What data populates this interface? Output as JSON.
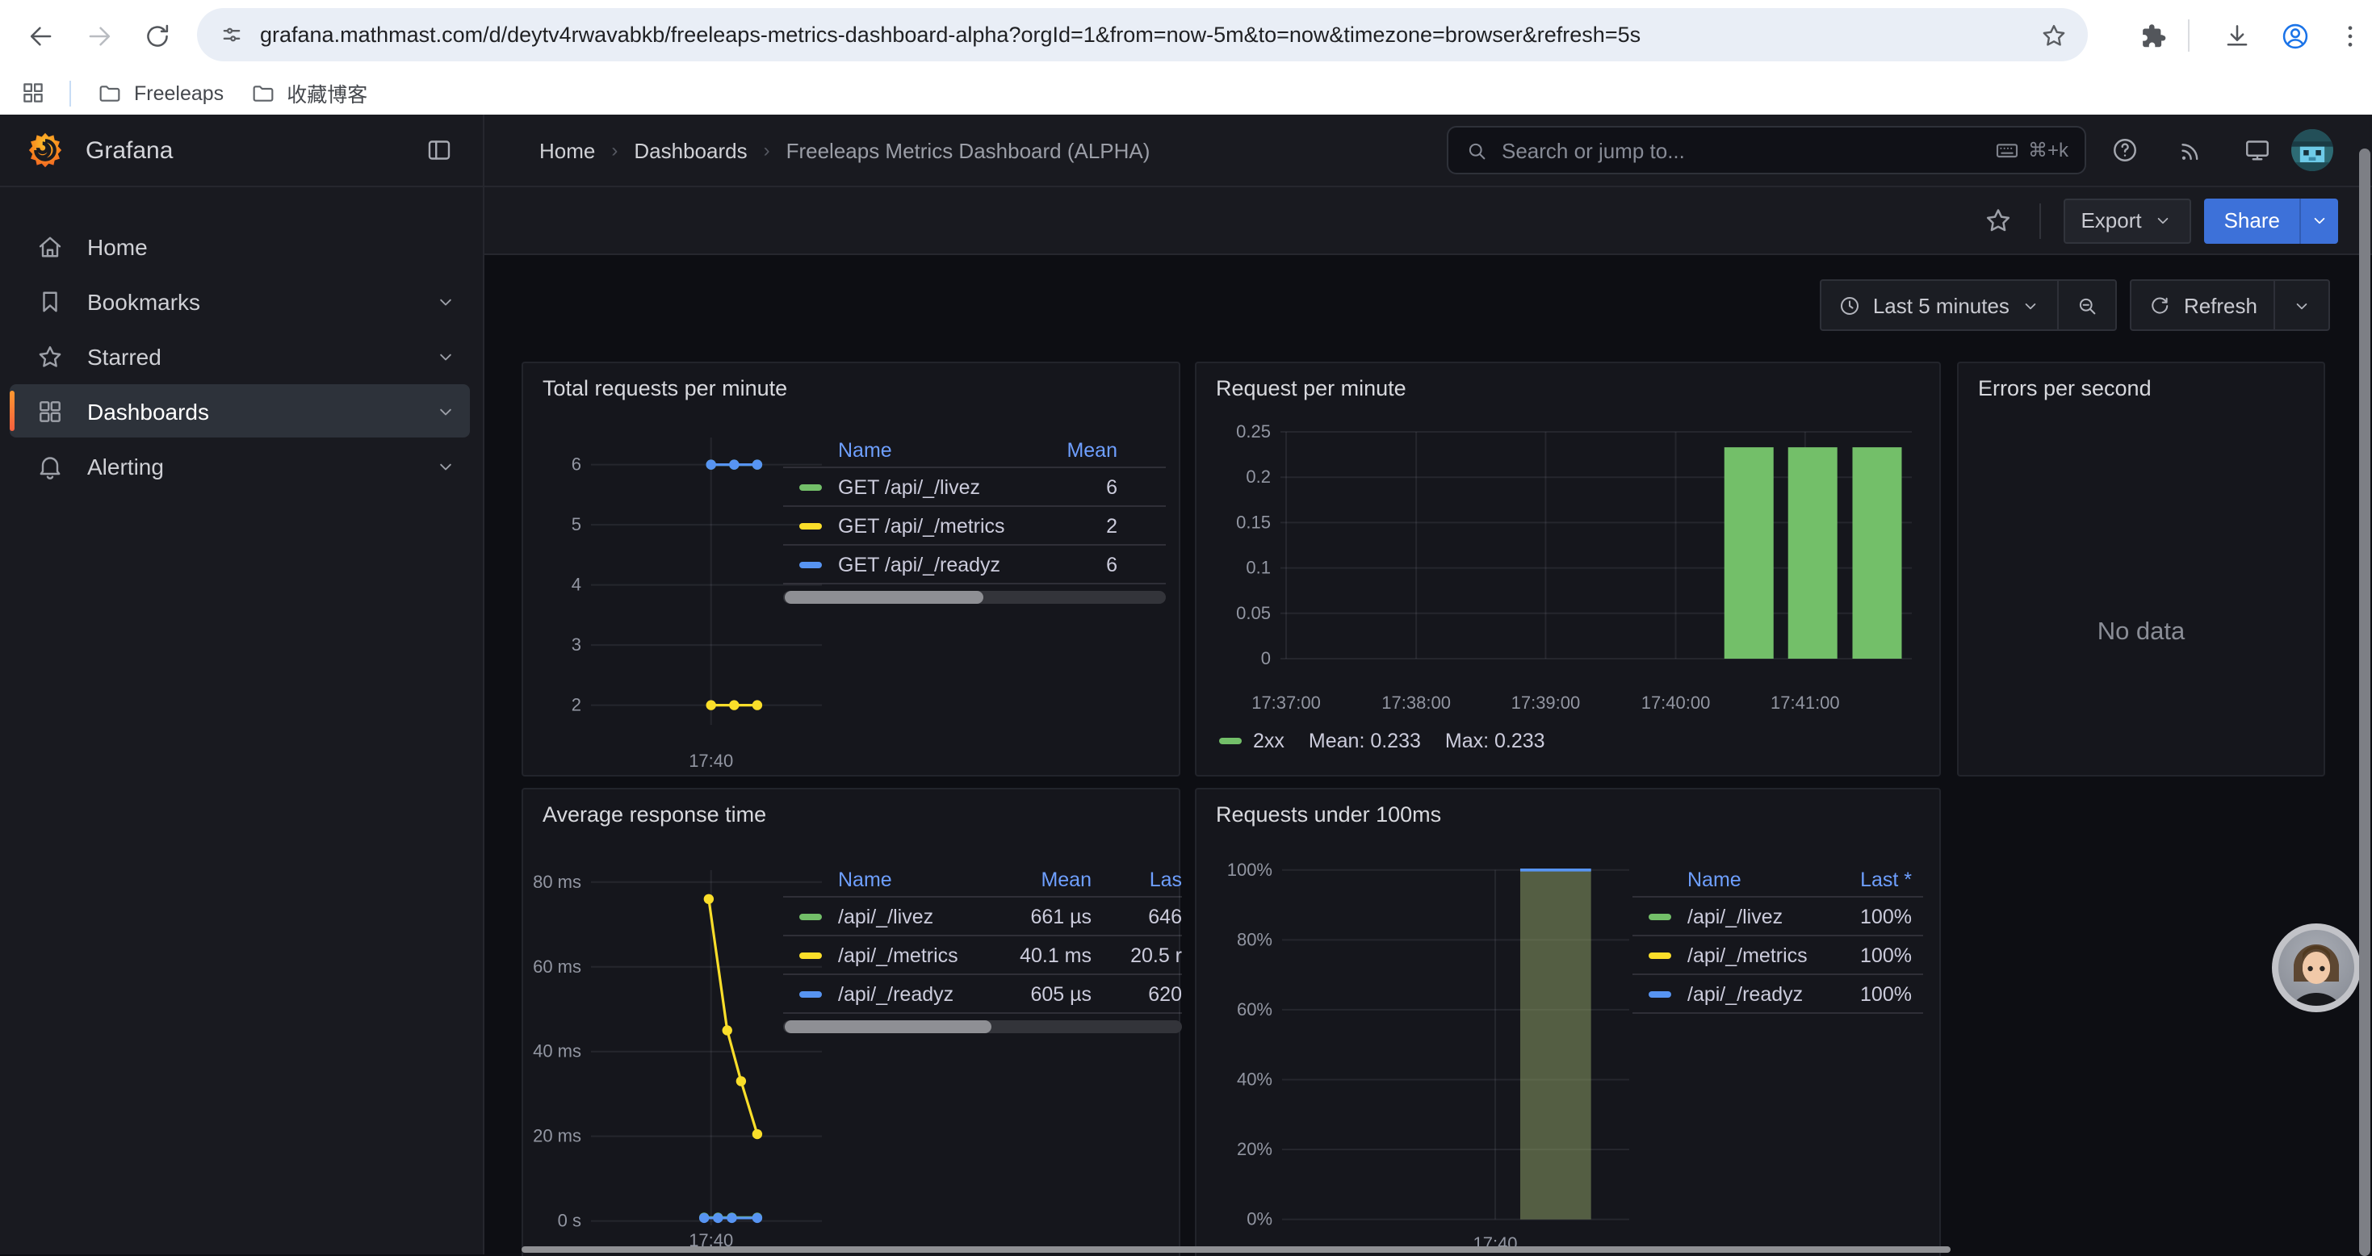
{
  "browser": {
    "url": "grafana.mathmast.com/d/deytv4rwavabkb/freeleaps-metrics-dashboard-alpha?orgId=1&from=now-5m&to=now&timezone=browser&refresh=5s",
    "bookmarks": [
      {
        "label": "Freeleaps"
      },
      {
        "label": "收藏博客"
      }
    ]
  },
  "nav": {
    "brand": "Grafana",
    "breadcrumb": [
      "Home",
      "Dashboards",
      "Freeleaps Metrics Dashboard (ALPHA)"
    ],
    "search_placeholder": "Search or jump to...",
    "search_shortcut": "⌘+k",
    "export_label": "Export",
    "share_label": "Share",
    "time_range_label": "Last 5 minutes",
    "refresh_label": "Refresh"
  },
  "sidebar": {
    "items": [
      {
        "label": "Home",
        "icon": "home",
        "active": false,
        "chevron": false
      },
      {
        "label": "Bookmarks",
        "icon": "bookmark",
        "active": false,
        "chevron": true
      },
      {
        "label": "Starred",
        "icon": "star",
        "active": false,
        "chevron": true
      },
      {
        "label": "Dashboards",
        "icon": "grid",
        "active": true,
        "chevron": true
      },
      {
        "label": "Alerting",
        "icon": "bell",
        "active": false,
        "chevron": true
      }
    ]
  },
  "colors": {
    "green": "#73BF69",
    "yellow": "#FADE2A",
    "blue": "#5794F2",
    "link_blue": "#6E9FFF",
    "accent_orange": "#FF9830",
    "share_blue": "#3D71D9",
    "area_fill": "rgba(148,165,105,0.5)"
  },
  "icon_names": [
    "back",
    "forward",
    "reload",
    "site-info",
    "bookmark-star",
    "extensions",
    "download",
    "profile",
    "menu-kebab",
    "apps-grid",
    "folder",
    "grafana-logo",
    "collapse-sidebar",
    "search",
    "keyboard",
    "help",
    "news",
    "monitor",
    "user-avatar",
    "home",
    "bookmark",
    "star",
    "grid",
    "bell",
    "chevron-down",
    "clock",
    "zoom-out",
    "refresh-sync",
    "assistant-avatar"
  ],
  "chart_data": [
    {
      "id": "total-requests",
      "type": "line",
      "title": "Total requests per minute",
      "y_ticks": [
        6,
        5,
        4,
        3,
        2
      ],
      "x_ticks": [
        {
          "label": "17:40",
          "x": 0.52
        }
      ],
      "ylim": [
        2,
        6
      ],
      "series": [
        {
          "name": "GET /api/_/livez",
          "color": "#73BF69",
          "points": [
            {
              "x": 0.52,
              "y": 6
            },
            {
              "x": 0.62,
              "y": 6
            },
            {
              "x": 0.72,
              "y": 6
            }
          ]
        },
        {
          "name": "GET /api/_/metrics",
          "color": "#FADE2A",
          "points": [
            {
              "x": 0.52,
              "y": 2
            },
            {
              "x": 0.62,
              "y": 2
            },
            {
              "x": 0.72,
              "y": 2
            }
          ]
        },
        {
          "name": "GET /api/_/readyz",
          "color": "#5794F2",
          "points": [
            {
              "x": 0.52,
              "y": 6
            },
            {
              "x": 0.62,
              "y": 6
            },
            {
              "x": 0.72,
              "y": 6
            }
          ]
        }
      ],
      "table": {
        "headers": [
          "Name",
          "Mean"
        ],
        "rows": [
          {
            "color": "#73BF69",
            "name": "GET /api/_/livez",
            "values": [
              "6"
            ]
          },
          {
            "color": "#FADE2A",
            "name": "GET /api/_/metrics",
            "values": [
              "2"
            ]
          },
          {
            "color": "#5794F2",
            "name": "GET /api/_/readyz",
            "values": [
              "6"
            ]
          }
        ],
        "scrollbar": true
      }
    },
    {
      "id": "request-per-minute",
      "type": "bar",
      "title": "Request per minute",
      "y_ticks": [
        0.25,
        0.2,
        0.15,
        0.1,
        0.05,
        0
      ],
      "ylim": [
        0,
        0.25
      ],
      "x_ticks": [
        {
          "label": "17:37:00",
          "x": 0.009
        },
        {
          "label": "17:38:00",
          "x": 0.215
        },
        {
          "label": "17:39:00",
          "x": 0.42
        },
        {
          "label": "17:40:00",
          "x": 0.626
        },
        {
          "label": "17:41:00",
          "x": 0.831
        }
      ],
      "bars": {
        "color": "#73BF69",
        "width": 0.078,
        "points": [
          {
            "x": 0.742,
            "y": 0.233
          },
          {
            "x": 0.843,
            "y": 0.233
          },
          {
            "x": 0.945,
            "y": 0.233
          }
        ]
      },
      "legend": {
        "color": "#73BF69",
        "name": "2xx",
        "stats": [
          "Mean: 0.233",
          "Max: 0.233"
        ]
      }
    },
    {
      "id": "errors-per-second",
      "type": "empty",
      "title": "Errors per second",
      "no_data_text": "No data"
    },
    {
      "id": "avg-response-time",
      "type": "line",
      "title": "Average response time",
      "y_ticks": [
        {
          "label": "80 ms",
          "value": 80
        },
        {
          "label": "60 ms",
          "value": 60
        },
        {
          "label": "40 ms",
          "value": 40
        },
        {
          "label": "20 ms",
          "value": 20
        },
        {
          "label": "0 s",
          "value": 0
        }
      ],
      "ylim": [
        0,
        80
      ],
      "x_ticks": [
        {
          "label": "17:40",
          "x": 0.52
        }
      ],
      "series": [
        {
          "name": "/api/_/livez",
          "color": "#73BF69",
          "points": [
            {
              "x": 0.49,
              "y": 0.8
            },
            {
              "x": 0.55,
              "y": 0.8
            },
            {
              "x": 0.61,
              "y": 0.8
            },
            {
              "x": 0.72,
              "y": 0.8
            }
          ]
        },
        {
          "name": "/api/_/metrics",
          "color": "#FADE2A",
          "points": [
            {
              "x": 0.51,
              "y": 76
            },
            {
              "x": 0.59,
              "y": 45
            },
            {
              "x": 0.65,
              "y": 33
            },
            {
              "x": 0.72,
              "y": 20.5
            }
          ]
        },
        {
          "name": "/api/_/readyz",
          "color": "#5794F2",
          "points": [
            {
              "x": 0.49,
              "y": 0.7
            },
            {
              "x": 0.55,
              "y": 0.7
            },
            {
              "x": 0.61,
              "y": 0.7
            },
            {
              "x": 0.72,
              "y": 0.7
            }
          ]
        }
      ],
      "table": {
        "headers": [
          "Name",
          "Mean",
          "Las"
        ],
        "rows": [
          {
            "color": "#73BF69",
            "name": "/api/_/livez",
            "values": [
              "661 µs",
              "646"
            ]
          },
          {
            "color": "#FADE2A",
            "name": "/api/_/metrics",
            "values": [
              "40.1 ms",
              "20.5 r"
            ]
          },
          {
            "color": "#5794F2",
            "name": "/api/_/readyz",
            "values": [
              "605 µs",
              "620"
            ]
          }
        ],
        "scrollbar": true
      }
    },
    {
      "id": "requests-under-100ms",
      "type": "area",
      "title": "Requests under 100ms",
      "y_ticks": [
        {
          "label": "100%",
          "value": 100
        },
        {
          "label": "80%",
          "value": 80
        },
        {
          "label": "60%",
          "value": 60
        },
        {
          "label": "40%",
          "value": 40
        },
        {
          "label": "20%",
          "value": 20
        },
        {
          "label": "0%",
          "value": 0
        }
      ],
      "ylim": [
        0,
        100
      ],
      "x_ticks": [
        {
          "label": "17:40",
          "x": 0.614
        }
      ],
      "area": {
        "line_color": "#5794F2",
        "fill_color": "rgba(148,165,105,0.5)",
        "x_from": 0.686,
        "x_to": 0.89,
        "y": 100
      },
      "table": {
        "headers": [
          "Name",
          "Last *"
        ],
        "rows": [
          {
            "color": "#73BF69",
            "name": "/api/_/livez",
            "values": [
              "100%"
            ]
          },
          {
            "color": "#FADE2A",
            "name": "/api/_/metrics",
            "values": [
              "100%"
            ]
          },
          {
            "color": "#5794F2",
            "name": "/api/_/readyz",
            "values": [
              "100%"
            ]
          }
        ],
        "scrollbar": false
      }
    }
  ]
}
